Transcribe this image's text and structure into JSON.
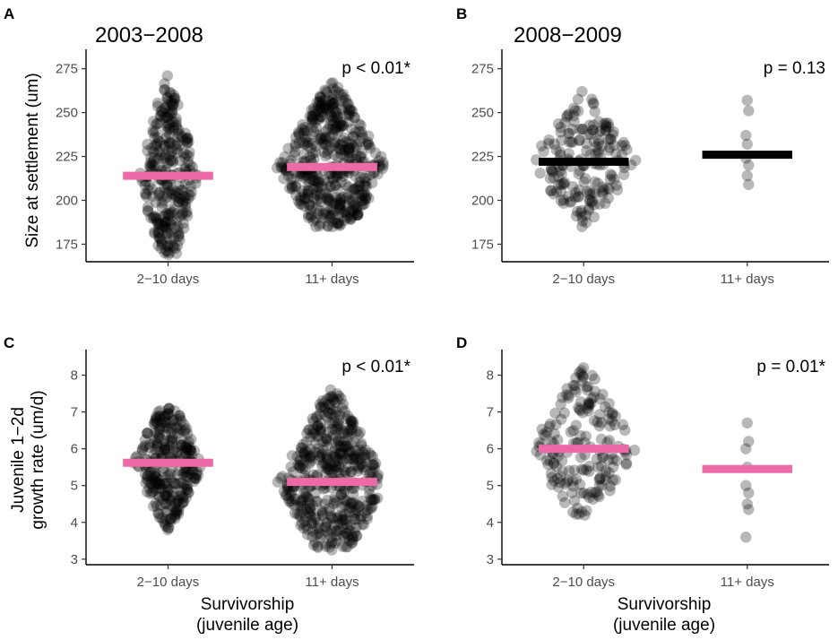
{
  "figure": {
    "colors": {
      "dots": "#000000",
      "pink": "#ee6aa7",
      "black": "#000000"
    },
    "x_axis_title": [
      "Survivorship",
      "(juvenile age)"
    ],
    "y_axis_title_top": [
      "Size at settlement (um)"
    ],
    "y_axis_title_bottom": [
      "Juvenile 1−2d",
      "growth rate (um/d)"
    ]
  },
  "chart_data": [
    {
      "panel": "A",
      "type": "scatter",
      "subtype": "beeswarm",
      "title": "2003−2008",
      "categories": [
        "2−10 days",
        "11+ days"
      ],
      "ylabel": "Size at settlement (um)",
      "yticks": [
        175,
        200,
        225,
        250,
        275
      ],
      "ylim": [
        165,
        282
      ],
      "annotation": "p < 0.01*",
      "means": [
        {
          "category": "2−10 days",
          "value": 214,
          "color": "pink"
        },
        {
          "category": "11+ days",
          "value": 219,
          "color": "pink"
        }
      ],
      "distributions": [
        {
          "category": "2−10 days",
          "min": 169,
          "max": 271,
          "center": 214,
          "n": 300,
          "halfwidth": 0.19
        },
        {
          "category": "11+ days",
          "min": 185,
          "max": 267,
          "center": 219,
          "n": 480,
          "halfwidth": 0.34
        }
      ]
    },
    {
      "panel": "B",
      "type": "scatter",
      "subtype": "beeswarm",
      "title": "2008−2009",
      "categories": [
        "2−10 days",
        "11+ days"
      ],
      "ylabel": "",
      "yticks": [
        175,
        200,
        225,
        250,
        275
      ],
      "ylim": [
        165,
        282
      ],
      "annotation": "p = 0.13",
      "means": [
        {
          "category": "2−10 days",
          "value": 222,
          "color": "black"
        },
        {
          "category": "11+ days",
          "value": 226,
          "color": "black"
        }
      ],
      "distributions": [
        {
          "category": "2−10 days",
          "min": 185,
          "max": 262,
          "center": 222,
          "n": 180,
          "halfwidth": 0.33
        }
      ],
      "points": [
        {
          "category": "11+ days",
          "values": [
            257,
            251,
            237,
            232,
            224,
            220,
            214,
            209
          ]
        }
      ]
    },
    {
      "panel": "C",
      "type": "scatter",
      "subtype": "beeswarm",
      "title": "",
      "categories": [
        "2−10 days",
        "11+ days"
      ],
      "ylabel": "Juvenile 1−2d growth rate (um/d)",
      "yticks": [
        3,
        4,
        5,
        6,
        7,
        8
      ],
      "ylim": [
        2.85,
        8.5
      ],
      "annotation": "p < 0.01*",
      "means": [
        {
          "category": "2−10 days",
          "value": 5.62,
          "color": "pink"
        },
        {
          "category": "11+ days",
          "value": 5.1,
          "color": "pink"
        }
      ],
      "distributions": [
        {
          "category": "2−10 days",
          "min": 3.8,
          "max": 7.1,
          "center": 5.6,
          "n": 300,
          "halfwidth": 0.22
        },
        {
          "category": "11+ days",
          "min": 3.25,
          "max": 7.6,
          "center": 5.1,
          "n": 480,
          "halfwidth": 0.34
        }
      ]
    },
    {
      "panel": "D",
      "type": "scatter",
      "subtype": "beeswarm",
      "title": "",
      "categories": [
        "2−10 days",
        "11+ days"
      ],
      "ylabel": "",
      "yticks": [
        3,
        4,
        5,
        6,
        7,
        8
      ],
      "ylim": [
        2.85,
        8.5
      ],
      "annotation": "p = 0.01*",
      "means": [
        {
          "category": "2−10 days",
          "value": 6.0,
          "color": "pink"
        },
        {
          "category": "11+ days",
          "value": 5.45,
          "color": "pink"
        }
      ],
      "distributions": [
        {
          "category": "2−10 days",
          "min": 4.2,
          "max": 8.2,
          "center": 6.0,
          "n": 180,
          "halfwidth": 0.33
        }
      ],
      "points": [
        {
          "category": "11+ days",
          "values": [
            6.7,
            6.2,
            6.0,
            5.5,
            5.0,
            4.8,
            4.5,
            4.35,
            3.6
          ]
        }
      ]
    }
  ]
}
